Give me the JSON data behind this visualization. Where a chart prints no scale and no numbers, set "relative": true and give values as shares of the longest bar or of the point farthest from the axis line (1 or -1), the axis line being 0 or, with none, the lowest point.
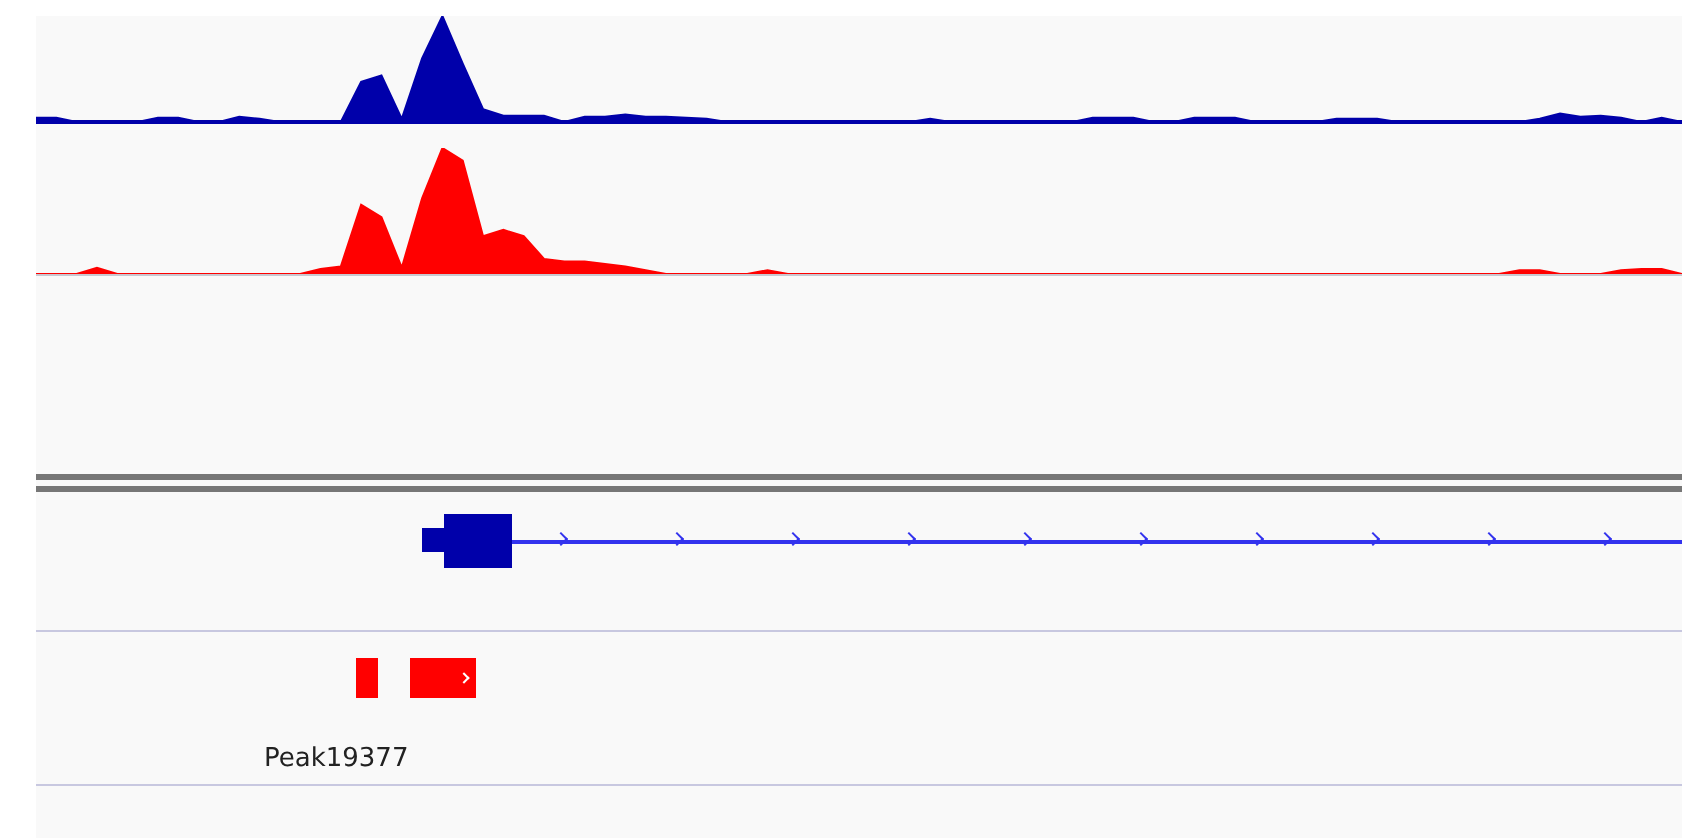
{
  "chart_data": [
    {
      "type": "area",
      "relative": true,
      "categories": [
        null,
        null,
        null,
        null,
        null,
        null,
        null,
        null,
        null,
        null,
        null,
        null,
        null,
        null,
        null,
        null,
        null,
        null,
        null,
        null,
        null,
        null,
        null,
        null,
        null,
        null,
        null,
        null,
        null,
        null,
        null,
        null,
        null,
        null,
        null,
        null,
        null,
        null,
        null,
        null,
        null,
        null,
        null,
        null,
        null,
        null,
        null,
        null,
        null,
        null,
        null,
        null,
        null,
        null,
        null,
        null,
        null,
        null,
        null,
        null,
        null,
        null,
        null,
        null,
        null,
        null,
        null,
        null,
        null,
        null,
        null,
        null,
        null,
        null,
        null,
        null,
        null,
        null,
        null,
        null,
        null,
        null
      ],
      "series": [
        {
          "color": "#0000aa",
          "values": [
            0.04,
            0.04,
            0,
            0,
            0,
            0,
            0.04,
            0.04,
            0,
            0,
            0.05,
            0.03,
            0,
            0,
            0,
            0,
            0.38,
            0.44,
            0.03,
            0.6,
            1,
            0.55,
            0.12,
            0.06,
            0.06,
            0.06,
            0,
            0.05,
            0.05,
            0.07,
            0.05,
            0.05,
            0.04,
            0.03,
            0,
            0,
            0,
            0,
            0,
            0,
            0,
            0,
            0,
            0,
            0.03,
            0,
            0,
            0,
            0,
            0,
            0,
            0,
            0.04,
            0.04,
            0.04,
            0,
            0,
            0.04,
            0.04,
            0.04,
            0,
            0,
            0,
            0,
            0.03,
            0.03,
            0.03,
            0,
            0,
            0,
            0,
            0,
            0,
            0,
            0.03,
            0.08,
            0.05,
            0.06,
            0.04,
            0,
            0.04,
            0
          ]
        }
      ]
    },
    {
      "type": "area",
      "relative": true,
      "annotations": [
        "Peak19377"
      ],
      "categories": [
        null,
        null,
        null,
        null,
        null,
        null,
        null,
        null,
        null,
        null,
        null,
        null,
        null,
        null,
        null,
        null,
        null,
        null,
        null,
        null,
        null,
        null,
        null,
        null,
        null,
        null,
        null,
        null,
        null,
        null,
        null,
        null,
        null,
        null,
        null,
        null,
        null,
        null,
        null,
        null,
        null,
        null,
        null,
        null,
        null,
        null,
        null,
        null,
        null,
        null,
        null,
        null,
        null,
        null,
        null,
        null,
        null,
        null,
        null,
        null,
        null,
        null,
        null,
        null,
        null,
        null,
        null,
        null,
        null,
        null,
        null,
        null,
        null,
        null,
        null,
        null,
        null,
        null,
        null,
        null,
        null,
        null
      ],
      "series": [
        {
          "color": "#ff0000",
          "values": [
            0,
            0,
            0,
            0.05,
            0,
            0,
            0,
            0,
            0,
            0,
            0,
            0,
            0,
            0,
            0.04,
            0.06,
            0.55,
            0.45,
            0.05,
            0.6,
            1,
            0.9,
            0.3,
            0.35,
            0.3,
            0.12,
            0.1,
            0.1,
            0.08,
            0.06,
            0.03,
            0,
            0,
            0,
            0,
            0,
            0.03,
            0,
            0,
            0,
            0,
            0,
            0,
            0,
            0,
            0,
            0,
            0,
            0,
            0,
            0,
            0,
            0,
            0,
            0,
            0,
            0,
            0,
            0,
            0,
            0,
            0,
            0,
            0,
            0,
            0,
            0,
            0,
            0,
            0,
            0,
            0,
            0,
            0.03,
            0.03,
            0,
            0,
            0,
            0.03,
            0.04,
            0.04,
            0
          ]
        }
      ]
    }
  ]
}
